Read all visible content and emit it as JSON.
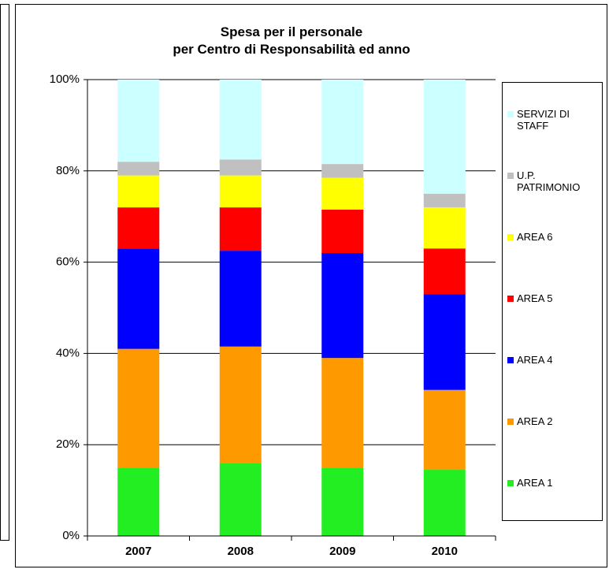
{
  "chart_data": {
    "type": "stacked_bar_100",
    "title": "Spesa per il personale\nper Centro di Responsabilità ed anno",
    "categories": [
      "2007",
      "2008",
      "2009",
      "2010"
    ],
    "series": [
      {
        "name": "AREA 1",
        "color": "#22ee22",
        "values": [
          15,
          16,
          15,
          14.5
        ]
      },
      {
        "name": "AREA 2",
        "color": "#ff9900",
        "values": [
          26,
          25.5,
          24,
          17.5
        ]
      },
      {
        "name": "AREA 4",
        "color": "#0000ff",
        "values": [
          22,
          21,
          23,
          21
        ]
      },
      {
        "name": "AREA 5",
        "color": "#ff0000",
        "values": [
          9,
          9.5,
          9.5,
          10
        ]
      },
      {
        "name": "AREA 6",
        "color": "#ffff00",
        "values": [
          7,
          7,
          7,
          9
        ]
      },
      {
        "name": "U.P. PATRIMONIO",
        "color": "#c0c0c0",
        "values": [
          3,
          3.5,
          3,
          3
        ]
      },
      {
        "name": "SERVIZI DI STAFF",
        "color": "#ccffff",
        "values": [
          18,
          17.5,
          18.5,
          25
        ]
      }
    ],
    "ylim": [
      0,
      100
    ],
    "yticks": [
      {
        "value": 0,
        "label": "0%"
      },
      {
        "value": 20,
        "label": "20%"
      },
      {
        "value": 40,
        "label": "40%"
      },
      {
        "value": 60,
        "label": "60%"
      },
      {
        "value": 80,
        "label": "80%"
      },
      {
        "value": 100,
        "label": "100%"
      }
    ],
    "grid": true,
    "legend": "right"
  }
}
